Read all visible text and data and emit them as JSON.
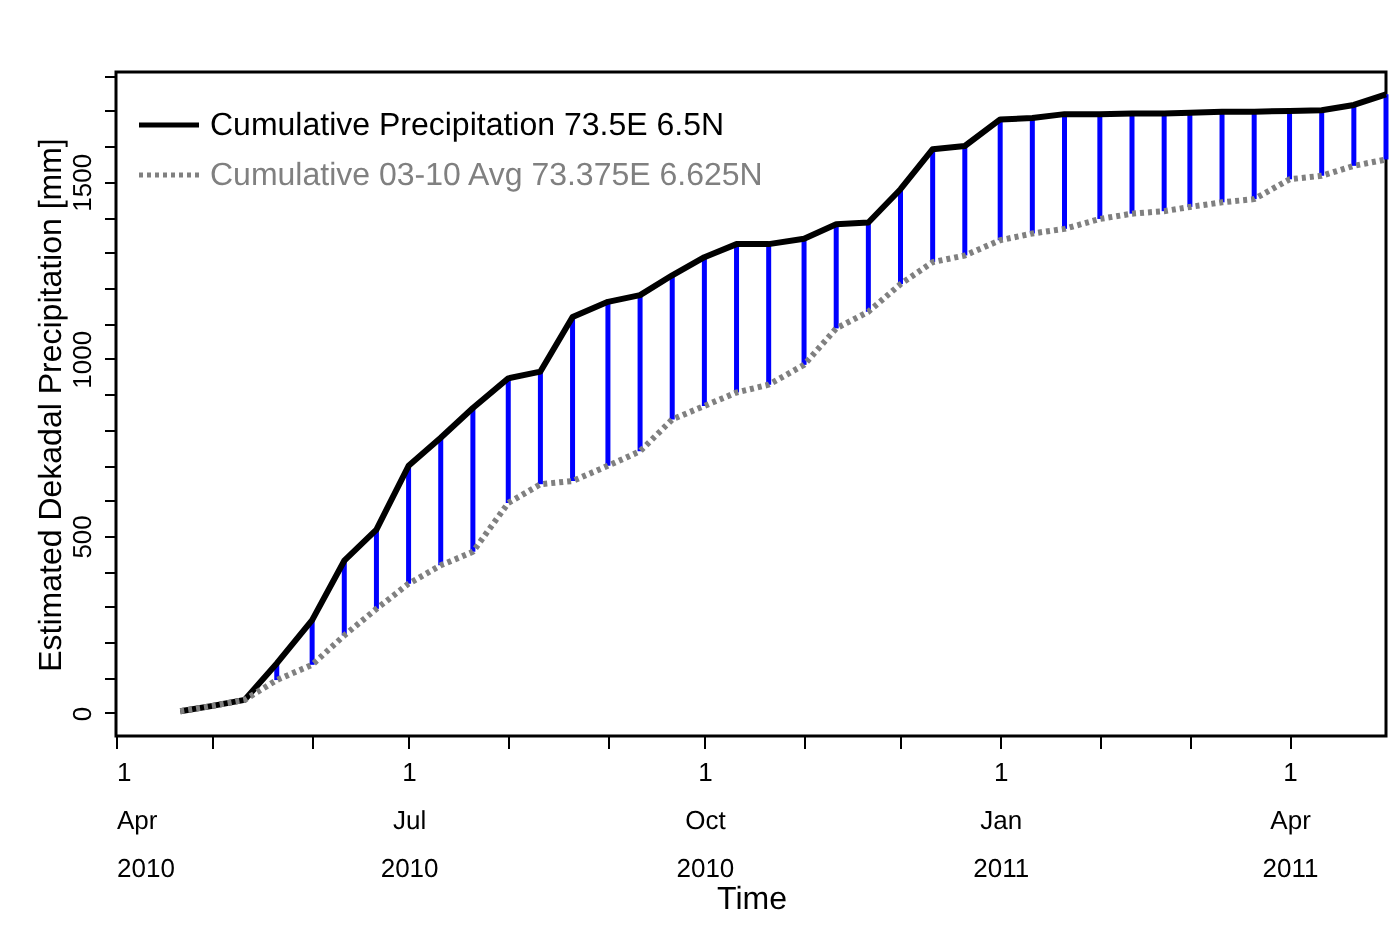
{
  "chart_data": {
    "type": "line",
    "xlabel": "Time",
    "ylabel": "Estimated Dekadal Precipitation [mm]",
    "x": [
      "2010-04-21",
      "2010-05-01",
      "2010-05-11",
      "2010-05-21",
      "2010-06-01",
      "2010-06-11",
      "2010-06-21",
      "2010-07-01",
      "2010-07-11",
      "2010-07-21",
      "2010-08-01",
      "2010-08-11",
      "2010-08-21",
      "2010-09-01",
      "2010-09-11",
      "2010-09-21",
      "2010-10-01",
      "2010-10-11",
      "2010-10-21",
      "2010-11-01",
      "2010-11-11",
      "2010-11-21",
      "2010-12-01",
      "2010-12-11",
      "2010-12-21",
      "2011-01-01",
      "2011-01-11",
      "2011-01-21",
      "2011-02-01",
      "2011-02-11",
      "2011-02-21",
      "2011-03-01",
      "2011-03-11",
      "2011-03-21",
      "2011-04-01",
      "2011-04-11",
      "2011-04-21",
      "2011-05-01"
    ],
    "series": [
      {
        "name": "Cumulative Precipitation 73.5E 6.5N",
        "color": "#000000",
        "line_style": "solid",
        "values": [
          5,
          20,
          37,
          140,
          262,
          430,
          518,
          698,
          777,
          861,
          945,
          964,
          1118,
          1161,
          1180,
          1236,
          1287,
          1324,
          1324,
          1339,
          1380,
          1385,
          1479,
          1592,
          1601,
          1676,
          1680,
          1691,
          1691,
          1693,
          1693,
          1695,
          1698,
          1698,
          1700,
          1702,
          1717,
          1747
        ]
      },
      {
        "name": "Cumulative 03-10 Avg 73.375E 6.625N",
        "color": "#808080",
        "line_style": "dotted",
        "values": [
          5,
          20,
          37,
          93,
          136,
          219,
          294,
          365,
          417,
          455,
          593,
          646,
          655,
          698,
          739,
          829,
          867,
          905,
          927,
          983,
          1086,
          1133,
          1211,
          1273,
          1292,
          1335,
          1354,
          1367,
          1395,
          1410,
          1417,
          1429,
          1442,
          1451,
          1507,
          1517,
          1545,
          1563
        ]
      },
      {
        "type": "bar",
        "color": "#0000ff",
        "base": [
          null,
          null,
          null,
          93,
          136,
          219,
          294,
          365,
          417,
          455,
          593,
          646,
          655,
          698,
          739,
          829,
          867,
          905,
          927,
          983,
          1086,
          1133,
          1211,
          1273,
          1292,
          1335,
          1354,
          1367,
          1395,
          1410,
          1417,
          1429,
          1442,
          1451,
          1507,
          1517,
          1545,
          1563
        ],
        "values": [
          null,
          null,
          null,
          47,
          126,
          211,
          224,
          333,
          360,
          406,
          352,
          318,
          463,
          463,
          441,
          407,
          420,
          419,
          397,
          356,
          294,
          252,
          268,
          319,
          309,
          341,
          326,
          324,
          296,
          283,
          276,
          266,
          256,
          247,
          193,
          185,
          172,
          184
        ]
      }
    ],
    "xlim": [
      "2010-04-01",
      "2011-05-01"
    ],
    "xticks": [
      {
        "value": "2010-04-01",
        "label": "1 Apr 2010"
      },
      {
        "value": "2010-05-01",
        "label": null
      },
      {
        "value": "2010-06-01",
        "label": null
      },
      {
        "value": "2010-07-01",
        "label": "1 Jul 2010"
      },
      {
        "value": "2010-08-01",
        "label": null
      },
      {
        "value": "2010-09-01",
        "label": null
      },
      {
        "value": "2010-10-01",
        "label": "1 Oct 2010"
      },
      {
        "value": "2010-11-01",
        "label": null
      },
      {
        "value": "2010-12-01",
        "label": null
      },
      {
        "value": "2011-01-01",
        "label": "1 Jan 2011"
      },
      {
        "value": "2011-02-01",
        "label": null
      },
      {
        "value": "2011-03-01",
        "label": null
      },
      {
        "value": "2011-04-01",
        "label": "1 Apr 2011"
      }
    ],
    "ylim": [
      -65,
      1810
    ],
    "yticks": [
      0,
      {
        "value": 100,
        "label": null
      },
      {
        "value": 200,
        "label": null
      },
      {
        "value": 300,
        "label": null
      },
      {
        "value": 400,
        "label": null
      },
      500,
      {
        "value": 600,
        "label": null
      },
      {
        "value": 700,
        "label": null
      },
      {
        "value": 800,
        "label": null
      },
      {
        "value": 900,
        "label": null
      },
      1000,
      {
        "value": 1100,
        "label": null
      },
      {
        "value": 1200,
        "label": null
      },
      {
        "value": 1300,
        "label": null
      },
      {
        "value": 1400,
        "label": null
      },
      1500,
      {
        "value": 1600,
        "label": null
      },
      {
        "value": 1700,
        "label": null
      },
      {
        "value": 1800,
        "label": null
      }
    ],
    "legend": "top left"
  }
}
